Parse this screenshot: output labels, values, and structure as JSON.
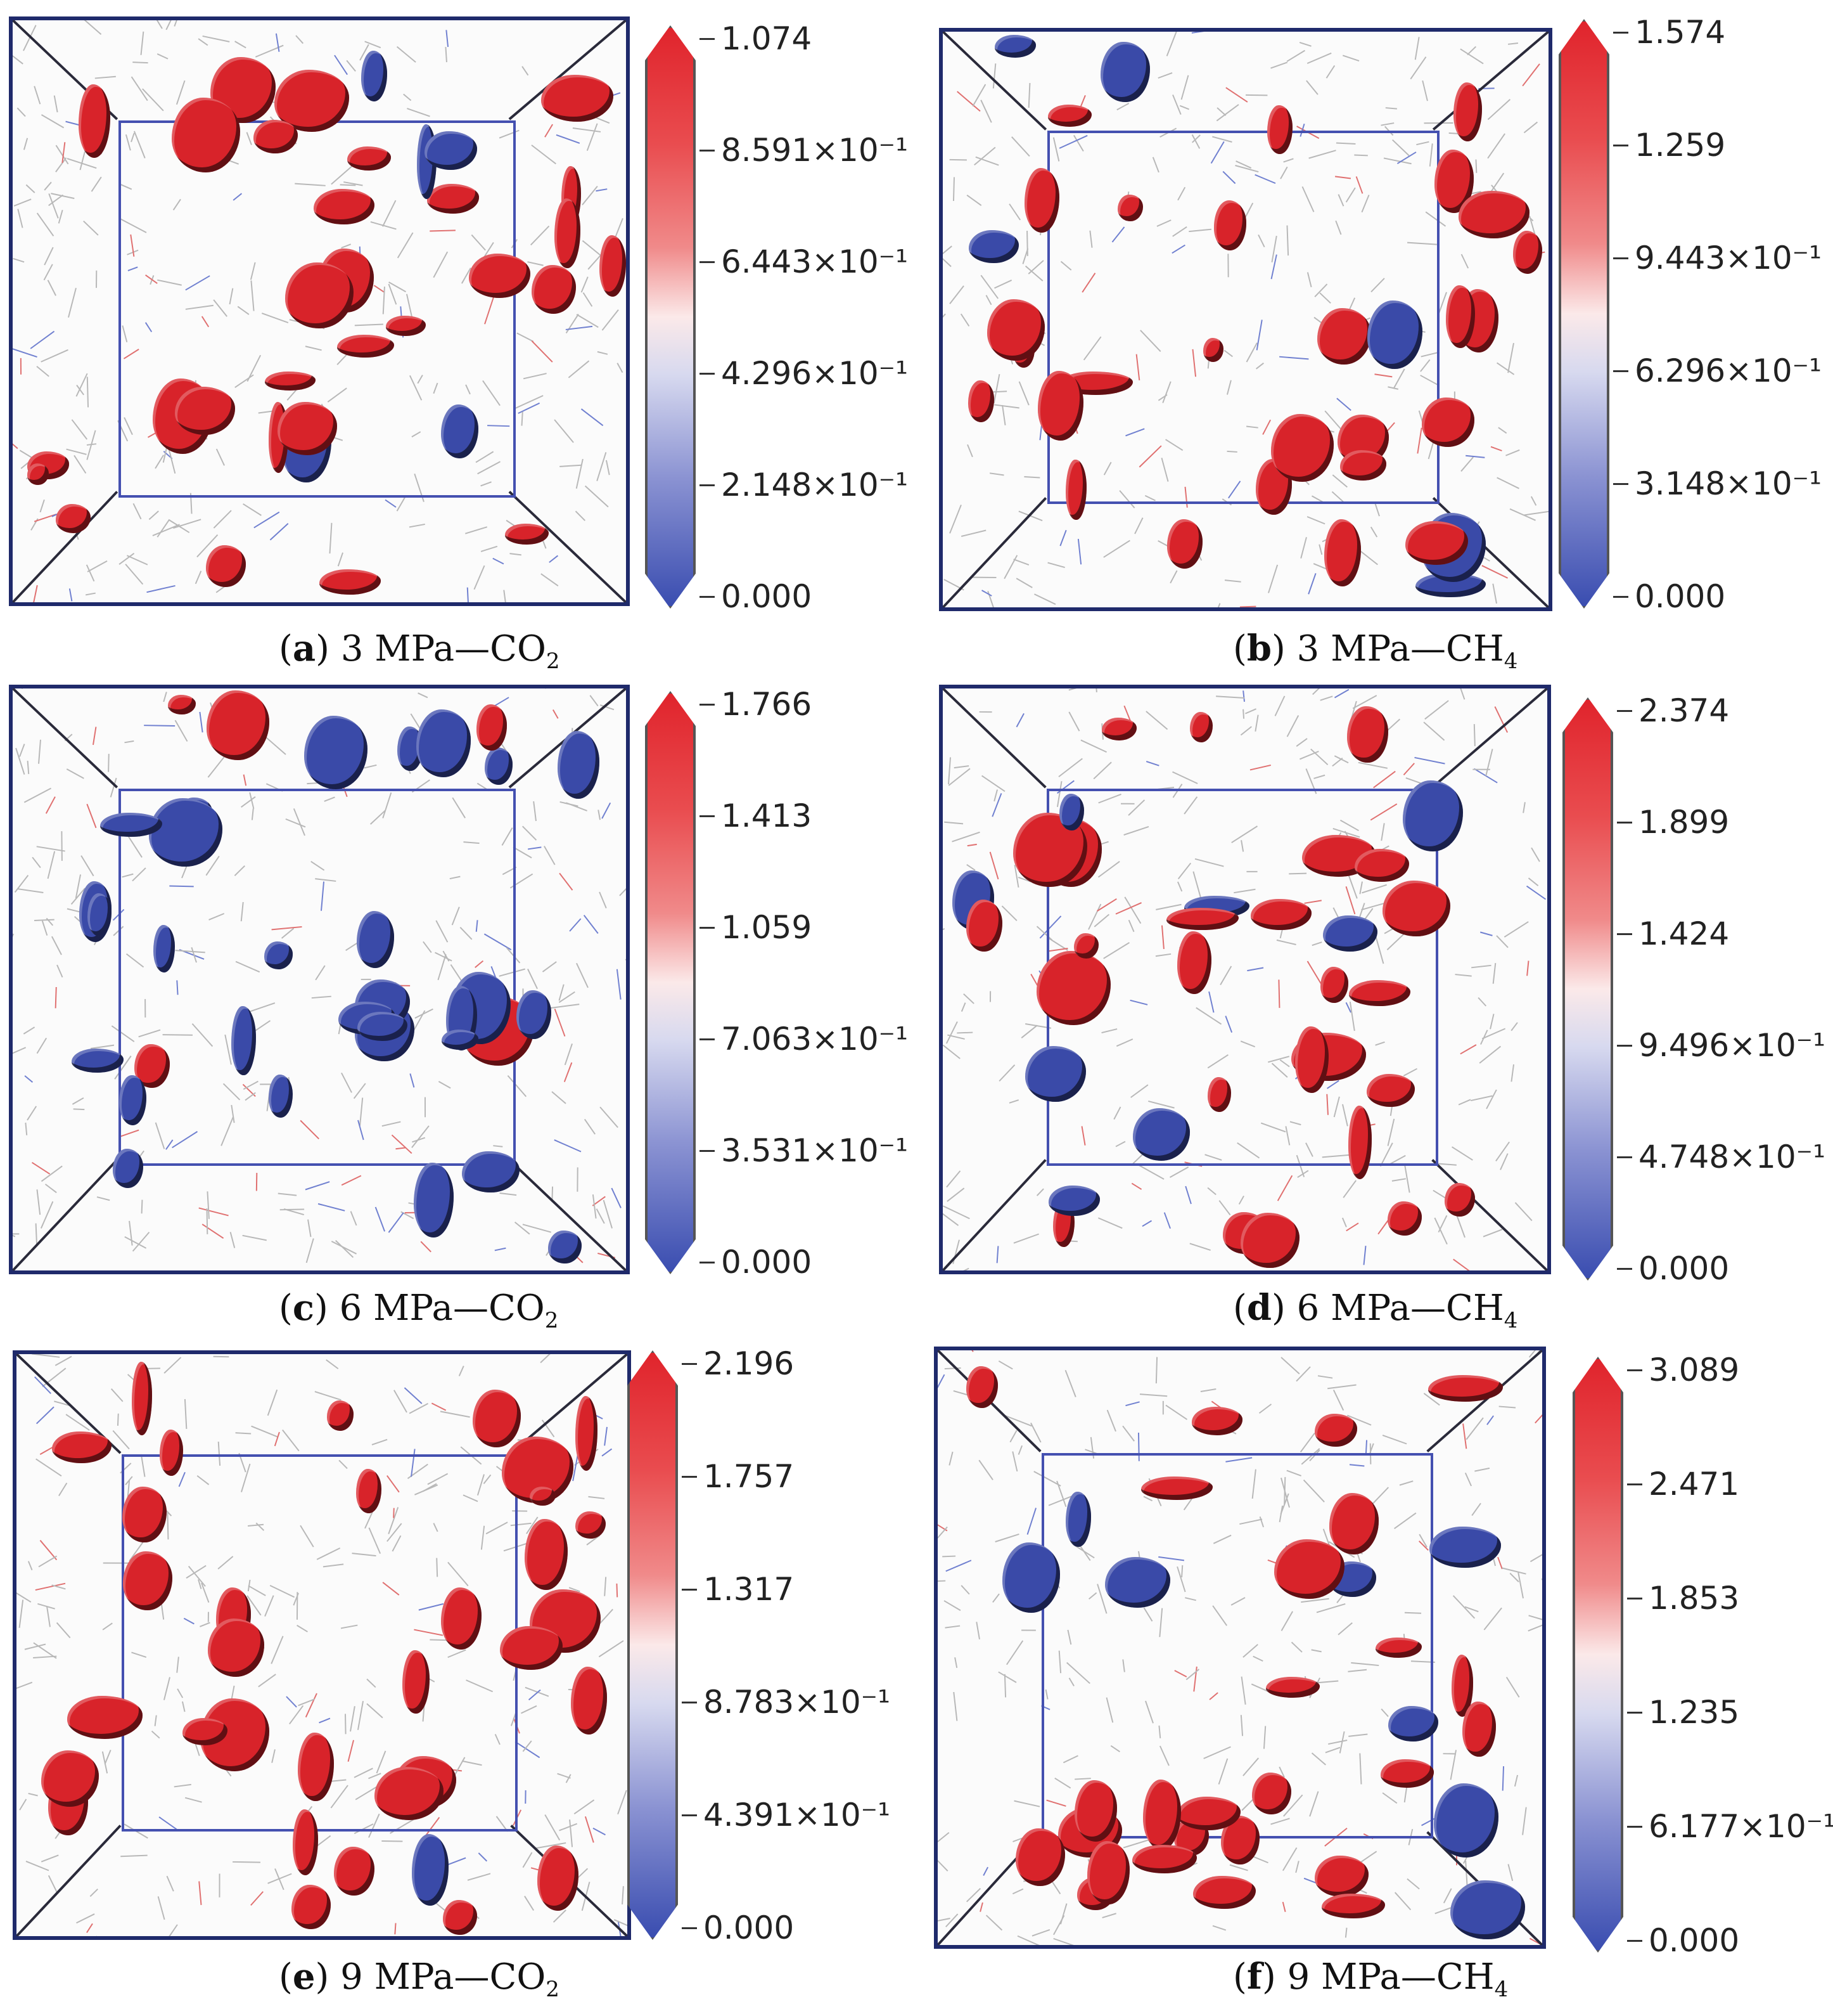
{
  "panels": [
    {
      "letter": "a",
      "label": "3 MPa—CO",
      "sub": "2",
      "scale": [
        "1.074",
        "8.591×10⁻¹",
        "6.443×10⁻¹",
        "4.296×10⁻¹",
        "2.148×10⁻¹",
        "0.000"
      ],
      "tone": "red"
    },
    {
      "letter": "b",
      "label": "3 MPa—CH",
      "sub": "4",
      "scale": [
        "1.574",
        "1.259",
        "9.443×10⁻¹",
        "6.296×10⁻¹",
        "3.148×10⁻¹",
        "0.000"
      ],
      "tone": "red"
    },
    {
      "letter": "c",
      "label": "6 MPa—CO",
      "sub": "2",
      "scale": [
        "1.766",
        "1.413",
        "1.059",
        "7.063×10⁻¹",
        "3.531×10⁻¹",
        "0.000"
      ],
      "tone": "blue"
    },
    {
      "letter": "d",
      "label": "6 MPa—CH",
      "sub": "4",
      "scale": [
        "2.374",
        "1.899",
        "1.424",
        "9.496×10⁻¹",
        "4.748×10⁻¹",
        "0.000"
      ],
      "tone": "mixed"
    },
    {
      "letter": "e",
      "label": "9 MPa—CO",
      "sub": "2",
      "scale": [
        "2.196",
        "1.757",
        "1.317",
        "8.783×10⁻¹",
        "4.391×10⁻¹",
        "0.000"
      ],
      "tone": "red"
    },
    {
      "letter": "f",
      "label": "9 MPa—CH",
      "sub": "4",
      "scale": [
        "3.089",
        "2.471",
        "1.853",
        "1.235",
        "6.177×10⁻¹",
        "0.000"
      ],
      "tone": "mixed"
    }
  ],
  "colors": {
    "red": "#d8232a",
    "blue": "#3a4aa8",
    "frame": "#1f2a6b",
    "inner": "#4450b0"
  }
}
